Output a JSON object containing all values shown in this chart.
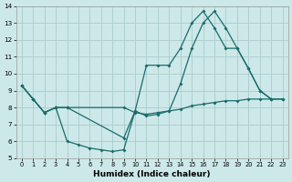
{
  "xlabel": "Humidex (Indice chaleur)",
  "bg_color": "#cde8e8",
  "grid_color": "#aacccc",
  "line_color": "#1a6b6b",
  "xlim": [
    -0.5,
    23.5
  ],
  "ylim": [
    5,
    14
  ],
  "xticks": [
    0,
    1,
    2,
    3,
    4,
    5,
    6,
    7,
    8,
    9,
    10,
    11,
    12,
    13,
    14,
    15,
    16,
    17,
    18,
    19,
    20,
    21,
    22,
    23
  ],
  "yticks": [
    5,
    6,
    7,
    8,
    9,
    10,
    11,
    12,
    13,
    14
  ],
  "line1_x": [
    0,
    1,
    2,
    3,
    4,
    5,
    6,
    7,
    8,
    9,
    10,
    11,
    12,
    13,
    14,
    15,
    16,
    17,
    18,
    19,
    20,
    21,
    22
  ],
  "line1_y": [
    9.3,
    8.5,
    7.7,
    8.0,
    6.0,
    5.8,
    5.6,
    5.5,
    5.4,
    5.5,
    7.8,
    7.5,
    7.6,
    7.8,
    9.4,
    11.5,
    13.0,
    13.7,
    12.7,
    11.5,
    10.3,
    9.0,
    8.5
  ],
  "line2_x": [
    0,
    1,
    2,
    3,
    4,
    9,
    10,
    11,
    12,
    13,
    14,
    15,
    16,
    17,
    18,
    19,
    20,
    21,
    22,
    23
  ],
  "line2_y": [
    9.3,
    8.5,
    7.7,
    8.0,
    8.0,
    8.0,
    7.7,
    7.6,
    7.7,
    7.8,
    7.9,
    8.1,
    8.2,
    8.3,
    8.4,
    8.4,
    8.5,
    8.5,
    8.5,
    8.5
  ],
  "line3_x": [
    0,
    1,
    2,
    3,
    4,
    9,
    10,
    11,
    12,
    13,
    14,
    15,
    16,
    17,
    18,
    19,
    20,
    21,
    22,
    23
  ],
  "line3_y": [
    9.3,
    8.5,
    7.7,
    8.0,
    8.0,
    6.2,
    7.8,
    10.5,
    10.5,
    10.5,
    11.5,
    13.0,
    13.7,
    12.7,
    11.5,
    11.5,
    10.3,
    9.0,
    8.5,
    8.5
  ]
}
